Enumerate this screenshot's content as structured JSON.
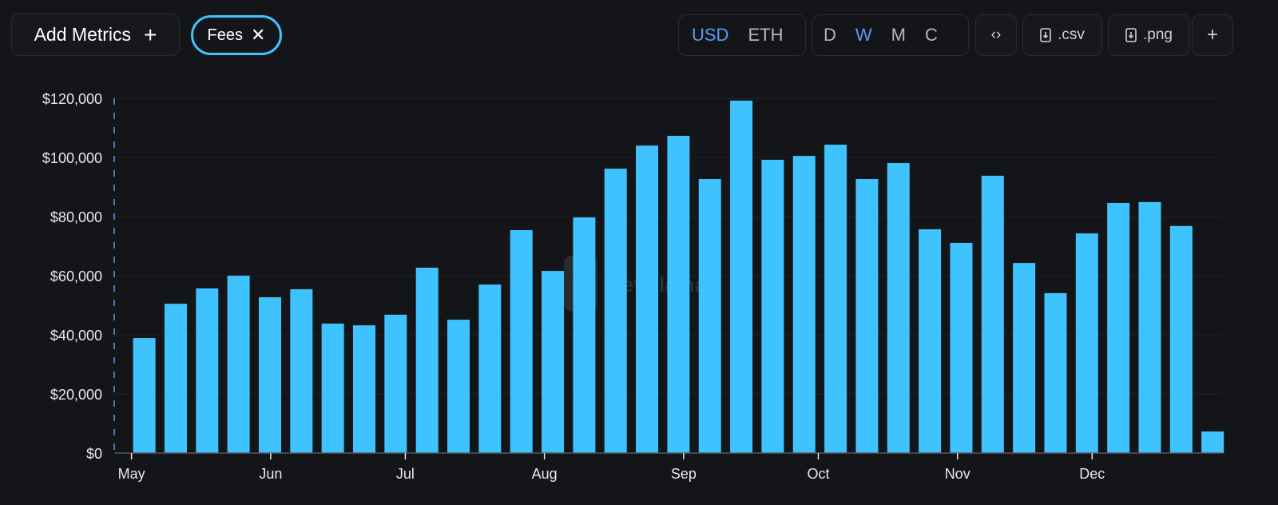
{
  "toolbar": {
    "add_metrics_label": "Add Metrics",
    "add_icon": "plus-icon",
    "active_metric": "Fees",
    "remove_icon": "x-icon",
    "currency_options": [
      "USD",
      "ETH"
    ],
    "currency_selected": "USD",
    "period_options": [
      "D",
      "W",
      "M",
      "C"
    ],
    "period_selected": "W",
    "embed_icon": "code-brackets-icon",
    "csv_label": ".csv",
    "png_label": ".png",
    "download_icon": "file-download-icon",
    "more_icon": "plus-icon"
  },
  "watermark": "DefiLlama",
  "colors": {
    "bar": "#3fc3ff",
    "accent": "#5b9cf0",
    "background": "#141518"
  },
  "chart_data": {
    "type": "bar",
    "title": "",
    "xlabel": "",
    "ylabel": "",
    "x_tick_labels": [
      "May",
      "Jun",
      "Jul",
      "Aug",
      "Sep",
      "Oct",
      "Nov",
      "Dec"
    ],
    "y_tick_labels": [
      "$0",
      "$20,000",
      "$40,000",
      "$60,000",
      "$80,000",
      "$100,000",
      "$120,000"
    ],
    "ylim": [
      0,
      120000
    ],
    "grid": true,
    "x": [
      "May 1",
      "May 8",
      "May 15",
      "May 22",
      "May 29",
      "Jun 5",
      "Jun 12",
      "Jun 19",
      "Jun 26",
      "Jul 3",
      "Jul 10",
      "Jul 17",
      "Jul 24",
      "Jul 31",
      "Aug 7",
      "Aug 14",
      "Aug 21",
      "Aug 28",
      "Sep 4",
      "Sep 11",
      "Sep 18",
      "Sep 25",
      "Oct 2",
      "Oct 9",
      "Oct 16",
      "Oct 23",
      "Oct 30",
      "Nov 6",
      "Nov 13",
      "Nov 20",
      "Nov 27",
      "Dec 4",
      "Dec 11",
      "Dec 18",
      "Dec 25"
    ],
    "values": [
      38900,
      50500,
      55700,
      60000,
      52700,
      55400,
      43800,
      43200,
      46800,
      62700,
      45100,
      57000,
      75400,
      61600,
      79700,
      96200,
      104000,
      107300,
      92700,
      119200,
      99200,
      100500,
      104300,
      92700,
      98100,
      75700,
      71100,
      93800,
      64300,
      54100,
      74300,
      84600,
      84900,
      76800,
      7300
    ]
  }
}
